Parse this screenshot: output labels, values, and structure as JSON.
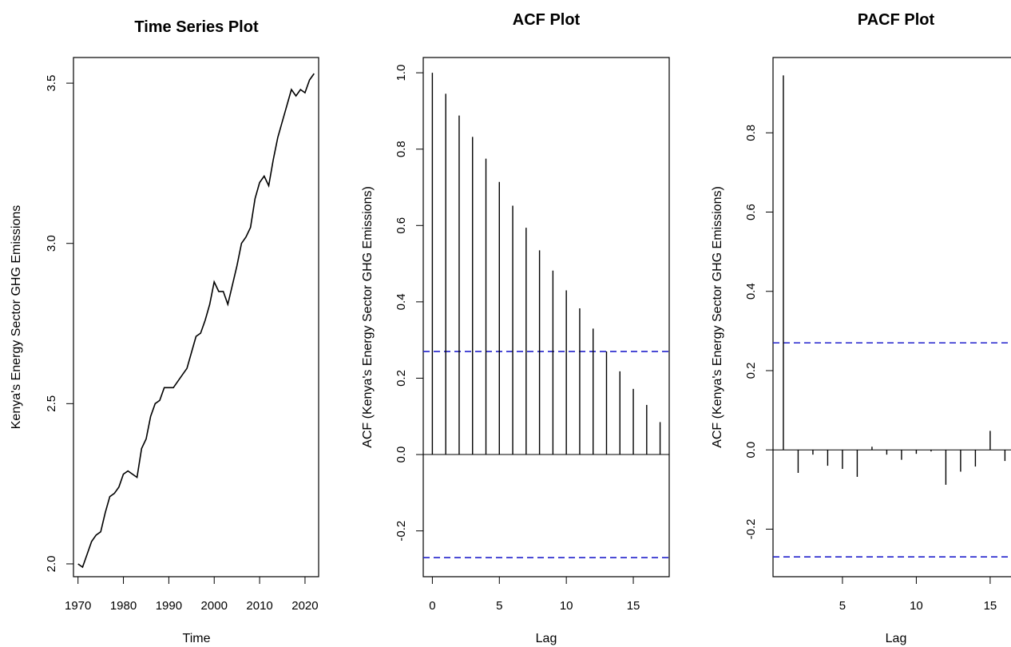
{
  "chart_data": [
    {
      "type": "line",
      "title": "Time Series Plot",
      "xlabel": "Time",
      "ylabel": "Kenya's Energy Sector GHG Emissions",
      "xticks": [
        1970,
        1980,
        1990,
        2000,
        2010,
        2020
      ],
      "yticks": [
        "2.0",
        "2.5",
        "3.0",
        "3.5"
      ],
      "xlim": [
        1969,
        2023
      ],
      "ylim": [
        1.96,
        3.58
      ],
      "x": [
        1970,
        1971,
        1972,
        1973,
        1974,
        1975,
        1976,
        1977,
        1978,
        1979,
        1980,
        1981,
        1982,
        1983,
        1984,
        1985,
        1986,
        1987,
        1988,
        1989,
        1990,
        1991,
        1992,
        1993,
        1994,
        1995,
        1996,
        1997,
        1998,
        1999,
        2000,
        2001,
        2002,
        2003,
        2004,
        2005,
        2006,
        2007,
        2008,
        2009,
        2010,
        2011,
        2012,
        2013,
        2014,
        2015,
        2016,
        2017,
        2018,
        2019,
        2020,
        2021,
        2022
      ],
      "values": [
        2.0,
        1.99,
        2.03,
        2.07,
        2.09,
        2.1,
        2.16,
        2.21,
        2.22,
        2.24,
        2.28,
        2.29,
        2.28,
        2.27,
        2.36,
        2.39,
        2.46,
        2.5,
        2.51,
        2.55,
        2.55,
        2.55,
        2.57,
        2.59,
        2.61,
        2.66,
        2.71,
        2.72,
        2.76,
        2.81,
        2.88,
        2.85,
        2.85,
        2.81,
        2.87,
        2.93,
        3.0,
        3.02,
        3.05,
        3.14,
        3.19,
        3.21,
        3.18,
        3.26,
        3.33,
        3.38,
        3.43,
        3.48,
        3.46,
        3.48,
        3.47,
        3.51,
        3.53
      ],
      "grid": false
    },
    {
      "type": "bar",
      "title": "ACF Plot",
      "xlabel": "Lag",
      "ylabel": "ACF (Kenya's Energy Sector GHG Emissions)",
      "xticks": [
        0,
        5,
        10,
        15
      ],
      "yticks": [
        "-0.2",
        "0.0",
        "0.2",
        "0.4",
        "0.6",
        "0.8",
        "1.0"
      ],
      "xlim": [
        -0.68,
        17.68
      ],
      "ylim": [
        -0.32,
        1.04
      ],
      "lags": [
        0,
        1,
        2,
        3,
        4,
        5,
        6,
        7,
        8,
        9,
        10,
        11,
        12,
        13,
        14,
        15,
        16,
        17
      ],
      "values": [
        1.0,
        0.945,
        0.888,
        0.832,
        0.775,
        0.714,
        0.652,
        0.594,
        0.535,
        0.482,
        0.43,
        0.383,
        0.33,
        0.27,
        0.218,
        0.172,
        0.13,
        0.085
      ],
      "ci": 0.27,
      "grid": false
    },
    {
      "type": "bar",
      "title": "PACF Plot",
      "xlabel": "Lag",
      "ylabel": "ACF (Kenya's Energy Sector GHG Emissions)",
      "xticks": [
        5,
        10,
        15
      ],
      "yticks": [
        "-0.2",
        "0.0",
        "0.2",
        "0.4",
        "0.6",
        "0.8"
      ],
      "xlim": [
        0.3,
        17.6
      ],
      "ylim": [
        -0.32,
        0.99
      ],
      "lags": [
        1,
        2,
        3,
        4,
        5,
        6,
        7,
        8,
        9,
        10,
        11,
        12,
        13,
        14,
        15,
        16
      ],
      "values": [
        0.945,
        -0.058,
        -0.012,
        -0.04,
        -0.048,
        -0.068,
        0.008,
        -0.012,
        -0.025,
        -0.01,
        -0.004,
        -0.088,
        -0.055,
        -0.042,
        0.048,
        -0.028
      ],
      "ci": 0.27,
      "grid": false
    }
  ]
}
